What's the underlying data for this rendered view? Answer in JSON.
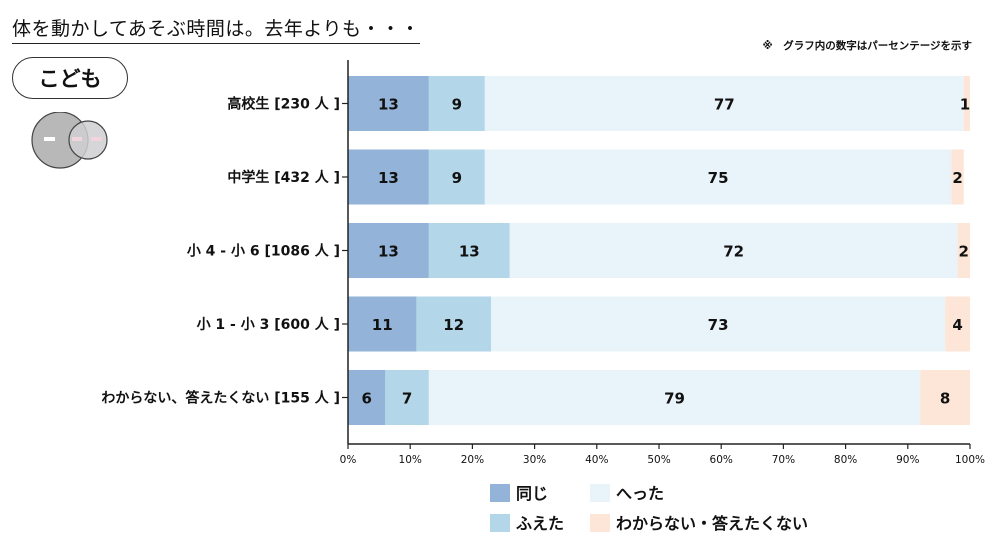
{
  "title": "体を動かしてあそぶ時間は。去年よりも・・・",
  "note": "※　グラフ内の数字はパーセンテージを示す",
  "group_label": "こども",
  "chart_data": {
    "type": "bar",
    "orientation": "horizontal",
    "stacked": true,
    "categories": [
      "高校生 [230 人 ]",
      "中学生 [432 人 ]",
      "小 4 - 小 6 [1086 人 ]",
      "小 1 - 小 3 [600 人 ]",
      "わからない、答えたくない [155 人 ]"
    ],
    "series": [
      {
        "name": "同じ",
        "values": [
          13,
          13,
          13,
          11,
          6
        ],
        "color": "#93b3d8"
      },
      {
        "name": "ふえた",
        "values": [
          9,
          9,
          13,
          12,
          7
        ],
        "color": "#b3d6e8"
      },
      {
        "name": "へった",
        "values": [
          77,
          75,
          72,
          73,
          79
        ],
        "color": "#e8f3fa"
      },
      {
        "name": "わからない・答えたくない",
        "values": [
          1,
          2,
          2,
          4,
          8
        ],
        "color": "#fde6d8"
      }
    ],
    "xlim": [
      0,
      100
    ],
    "xticks": [
      "0%",
      "10%",
      "20%",
      "30%",
      "40%",
      "50%",
      "60%",
      "70%",
      "80%",
      "90%",
      "100%"
    ],
    "grid": false,
    "legend_position": "bottom"
  }
}
